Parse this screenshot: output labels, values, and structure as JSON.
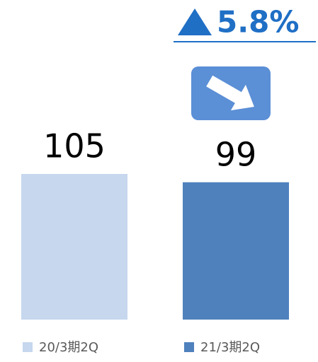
{
  "chart_data": {
    "type": "bar",
    "annotation": "5.8%",
    "categories": [
      "20/3期2Q",
      "21/3期2Q"
    ],
    "values": [
      105,
      99
    ],
    "colors": [
      "#c6d7ee",
      "#4f81bd"
    ]
  }
}
